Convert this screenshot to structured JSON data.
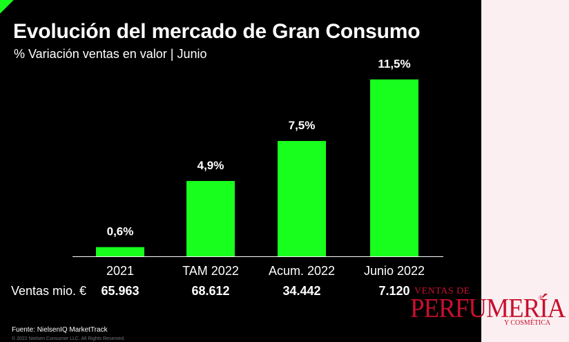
{
  "title": "Evolución del mercado de Gran Consumo",
  "subtitle": "% Variación ventas en valor | Junio",
  "row_label": "Ventas mio. €",
  "sales": [
    "65.963",
    "68.612",
    "34.442",
    "7.120"
  ],
  "source": "Fuente: NielsenIQ MarketTrack",
  "copyright": "© 2022 Nielsen Consumer LLC. All Rights Reserved.",
  "logo": {
    "top": "VENTAS DE",
    "main": "PERFUMERÍA",
    "reg": "®",
    "sub": "Y COSMÉTICA"
  },
  "colors": {
    "background": "#000000",
    "bar": "#18ff1e",
    "text": "#ffffff",
    "logo": "#c8102e",
    "page": "#fbeff1"
  },
  "chart_data": {
    "type": "bar",
    "categories": [
      "2021",
      "TAM 2022",
      "Acum. 2022",
      "Junio 2022"
    ],
    "values": [
      0.6,
      4.9,
      7.5,
      11.5
    ],
    "data_labels": [
      "0,6%",
      "4,9%",
      "7,5%",
      "11,5%"
    ],
    "ylim": [
      0,
      11.5
    ],
    "grid": false,
    "legend": "none"
  }
}
